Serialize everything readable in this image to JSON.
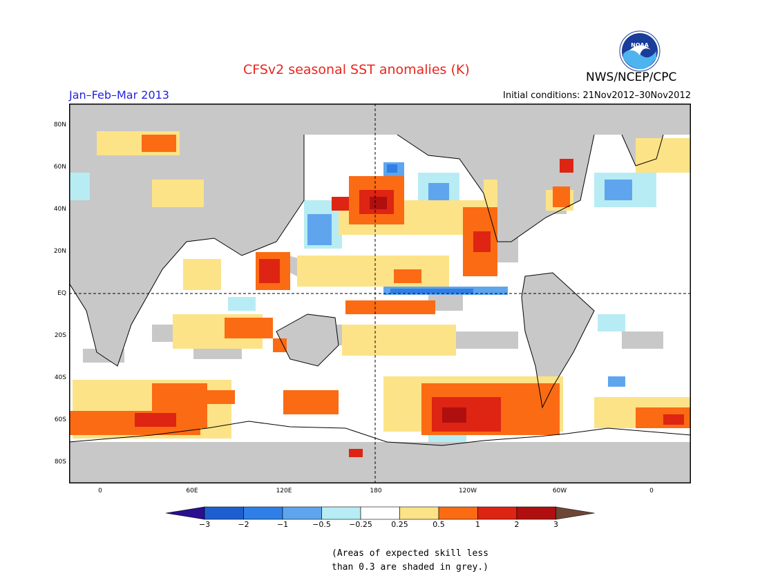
{
  "title": "CFSv2 seasonal SST anomalies (K)",
  "agency": "NWS/NCEP/CPC",
  "period": "Jan–Feb–Mar 2013",
  "initial_conditions": "Initial conditions: 21Nov2012–30Nov2012",
  "logo_text": "NOAA",
  "map": {
    "lat_labels": [
      "80N",
      "60N",
      "40N",
      "20N",
      "EQ",
      "20S",
      "40S",
      "60S",
      "80S"
    ],
    "lon_labels": [
      "0",
      "60E",
      "120E",
      "180",
      "120W",
      "60W",
      "0"
    ],
    "background_color": "#c8c8c8",
    "land_color": "#c8c8c8"
  },
  "colorbar": {
    "labels": [
      "−3",
      "−2",
      "−1",
      "−0.5",
      "−0.25",
      "0.25",
      "0.5",
      "1",
      "2",
      "3"
    ],
    "colors": [
      "#2a0f8f",
      "#1e5fd0",
      "#2f7fe6",
      "#5ea5ee",
      "#b8ecf4",
      "#ffffff",
      "#fce387",
      "#fb6b13",
      "#de2412",
      "#b00f0f",
      "#6e4636"
    ]
  },
  "note_lines": [
    "(Areas of expected skill less",
    "than 0.3 are shaded in grey.)"
  ]
}
